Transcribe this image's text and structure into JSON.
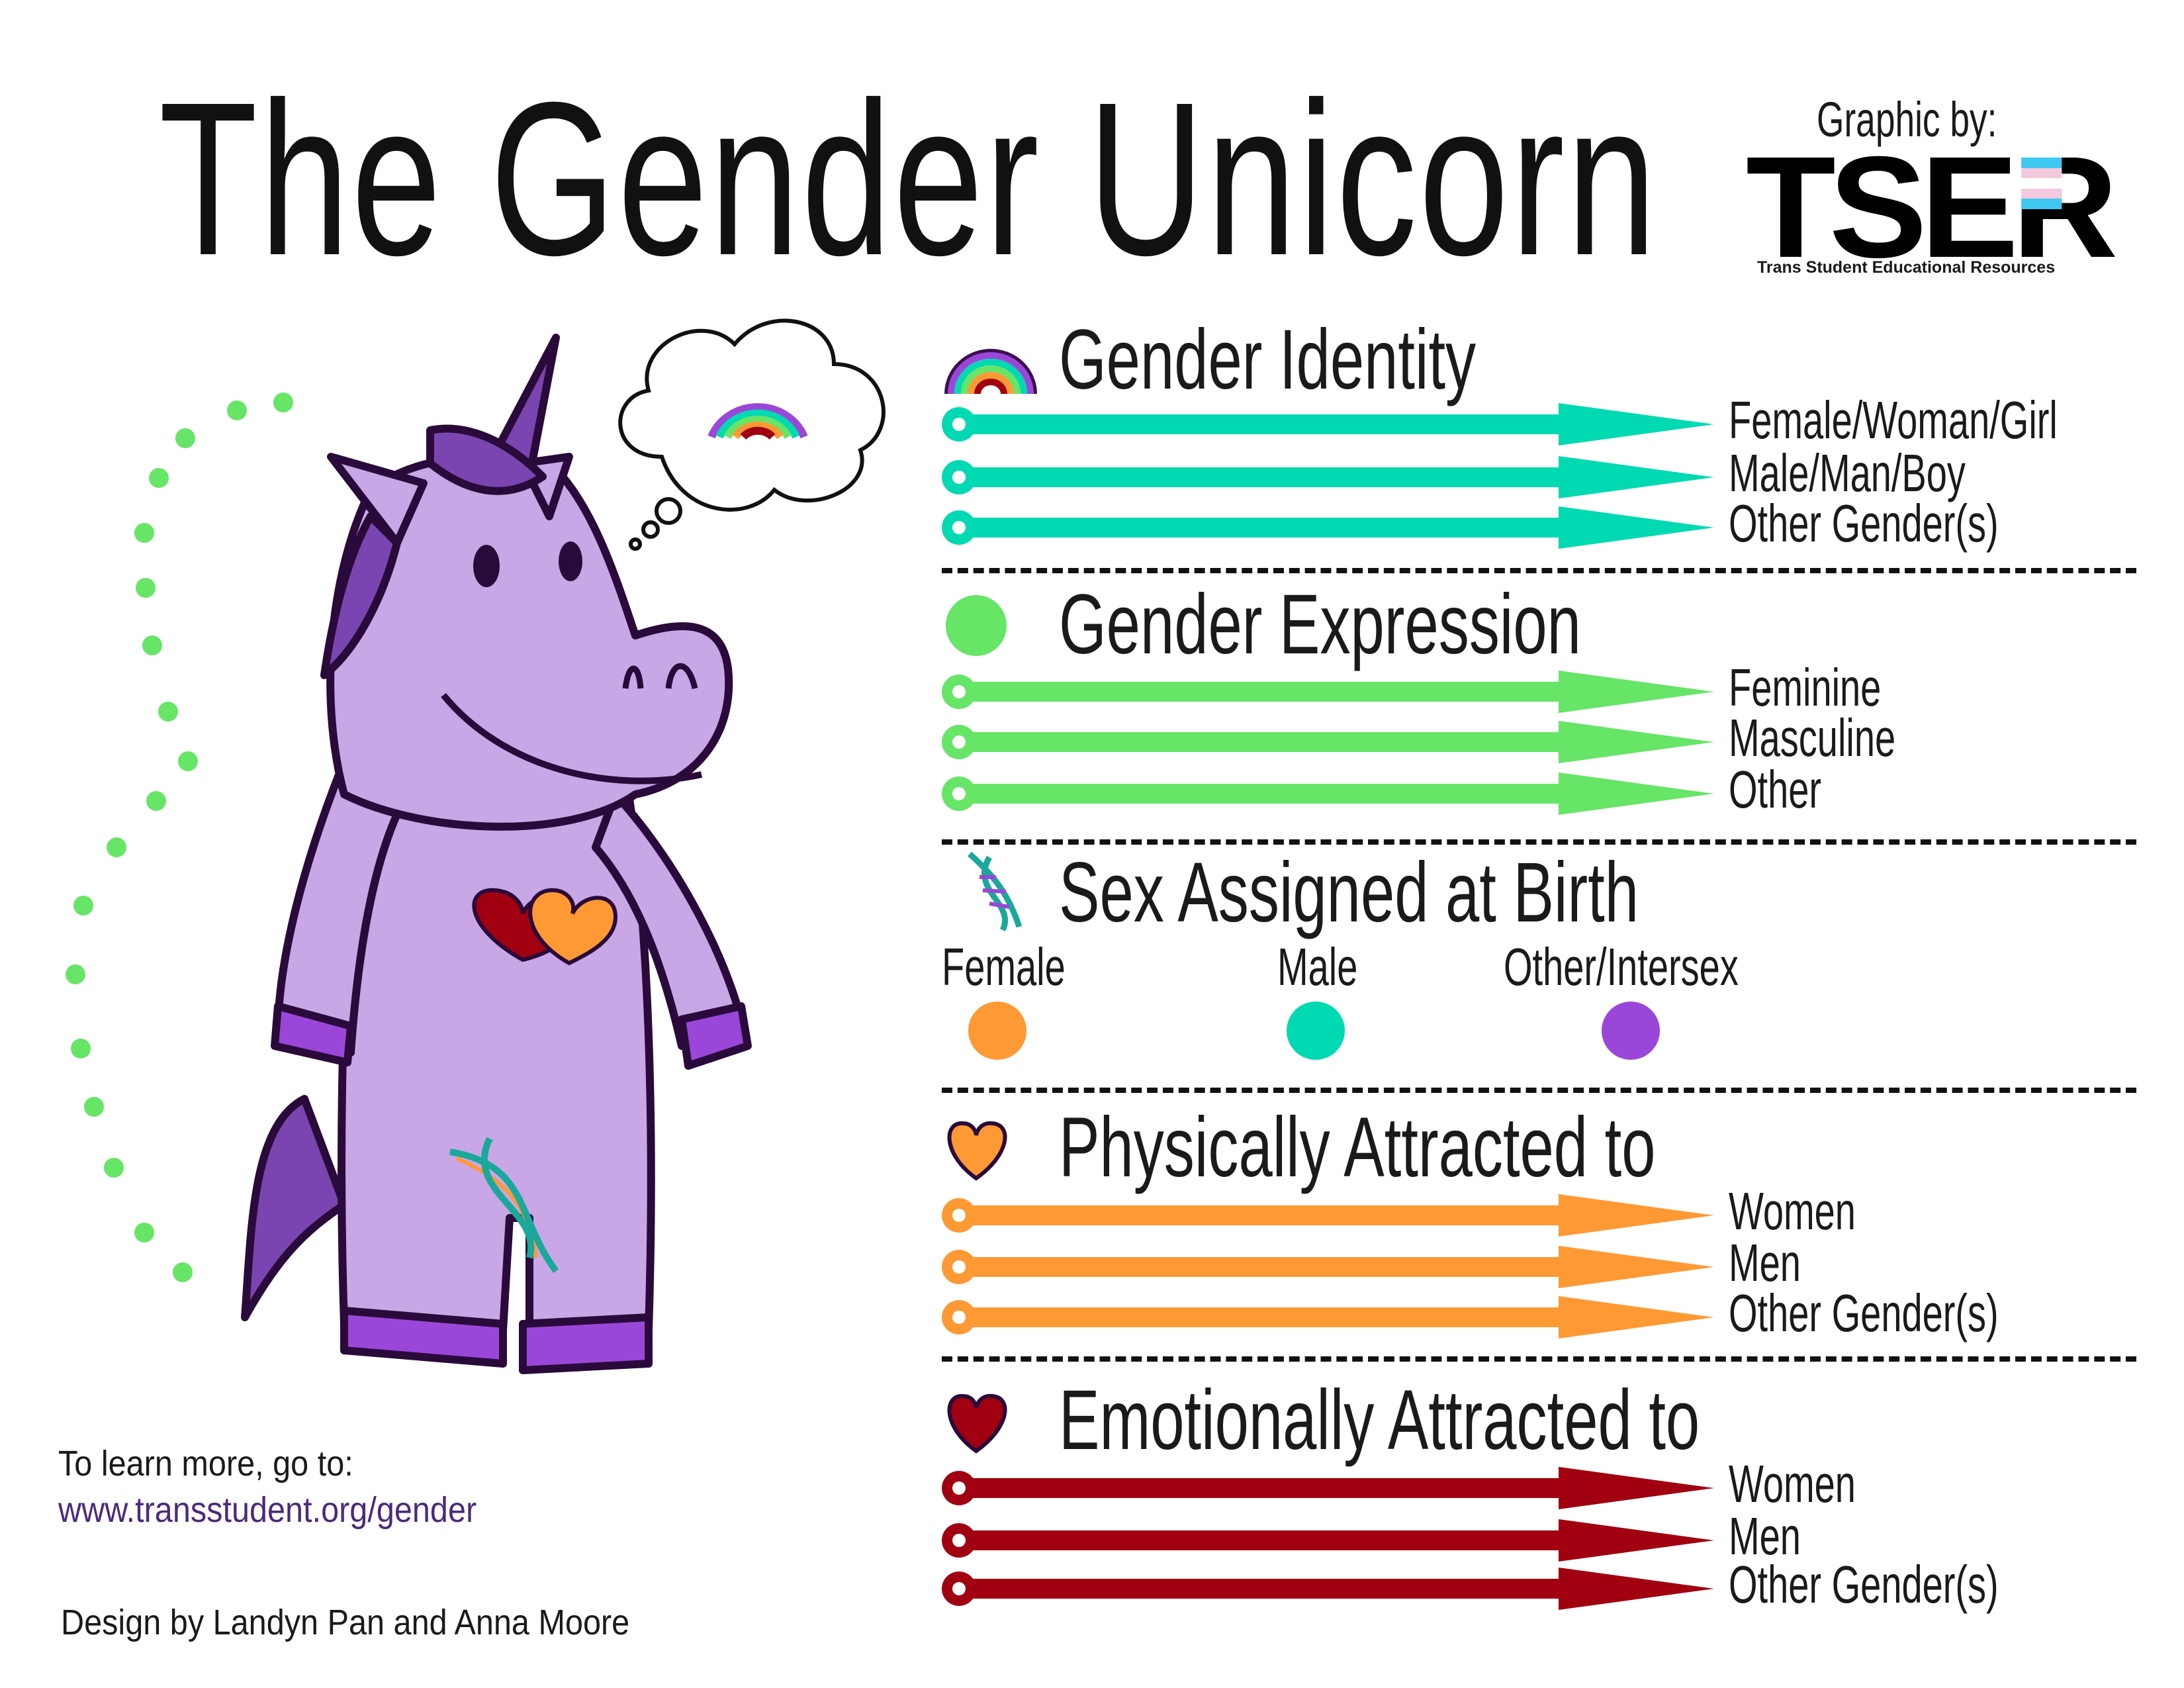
{
  "title": "The Gender Unicorn",
  "credit": {
    "graphic_by": "Graphic by:",
    "logo_text": "TSER",
    "logo_subtitle": "Trans Student Educational Resources"
  },
  "colors": {
    "gender_identity": "#00d9b1",
    "gender_expression": "#66e566",
    "female": "#ff9933",
    "male": "#00d9b1",
    "other_intersex": "#9a47d9",
    "physically_attracted": "#ff9933",
    "emotionally_attracted": "#a0000f",
    "unicorn_body": "#c9a6e6",
    "link": "#4b2a7a"
  },
  "sections": [
    {
      "title": "Gender Identity",
      "icon": "rainbow-icon",
      "color": "#00d9b1",
      "options": [
        "Female/Woman/Girl",
        "Male/Man/Boy",
        "Other Gender(s)"
      ]
    },
    {
      "title": "Gender Expression",
      "icon": "green-circle-icon",
      "color": "#66e566",
      "options": [
        "Feminine",
        "Masculine",
        "Other"
      ]
    },
    {
      "title": "Sex Assigned at Birth",
      "icon": "dna-icon",
      "choices": [
        {
          "label": "Female",
          "color": "#ff9933"
        },
        {
          "label": "Male",
          "color": "#00d9b1"
        },
        {
          "label": "Other/Intersex",
          "color": "#9a47d9"
        }
      ]
    },
    {
      "title": "Physically Attracted to",
      "icon": "orange-heart-icon",
      "color": "#ff9933",
      "options": [
        "Women",
        "Men",
        "Other Gender(s)"
      ]
    },
    {
      "title": "Emotionally Attracted to",
      "icon": "red-heart-icon",
      "color": "#a0000f",
      "options": [
        "Women",
        "Men",
        "Other Gender(s)"
      ]
    }
  ],
  "footer": {
    "learn_more": "To learn more, go to:",
    "url": "www.transstudent.org/gender",
    "design_by": "Design by Landyn Pan and Anna Moore"
  }
}
